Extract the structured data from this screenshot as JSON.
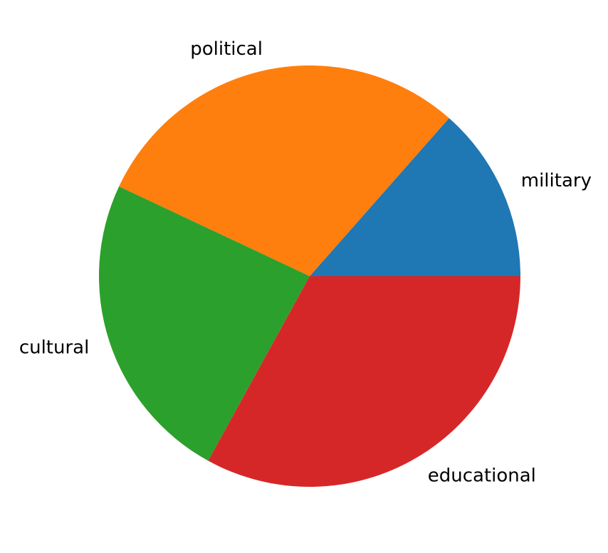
{
  "chart_data": {
    "type": "pie",
    "title": "",
    "categories": [
      "military",
      "political",
      "cultural",
      "educational"
    ],
    "values": [
      13.5,
      29.5,
      24.0,
      33.0
    ],
    "colors": [
      "#1f77b4",
      "#ff7f0e",
      "#2ca02c",
      "#d62728"
    ],
    "start_angle_deg": 0,
    "direction": "counterclockwise",
    "legend": "none"
  }
}
